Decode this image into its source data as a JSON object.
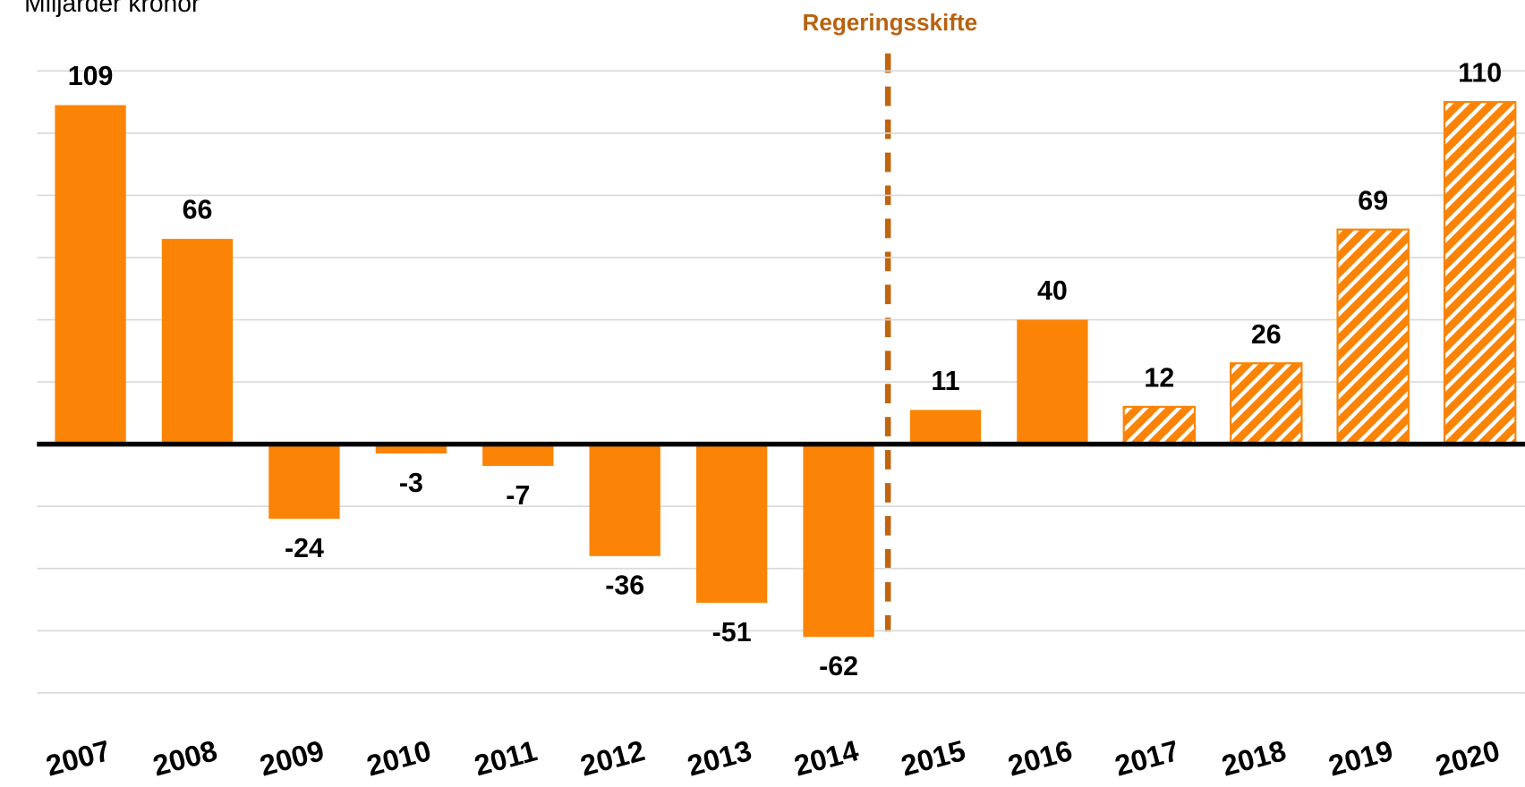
{
  "chart_data": {
    "type": "bar",
    "y_axis_label": "Miljarder kronor",
    "annotation": "Regeringsskifte",
    "categories": [
      "2007",
      "2008",
      "2009",
      "2010",
      "2011",
      "2012",
      "2013",
      "2014",
      "2015",
      "2016",
      "2017",
      "2018",
      "2019",
      "2020"
    ],
    "values": [
      109,
      66,
      -24,
      -3,
      -7,
      -36,
      -51,
      -62,
      11,
      40,
      12,
      26,
      69,
      110
    ],
    "hatched": [
      false,
      false,
      false,
      false,
      false,
      false,
      false,
      false,
      false,
      false,
      true,
      true,
      true,
      true
    ],
    "color": "#fb8407",
    "ylim": [
      -80,
      120
    ],
    "yticks": [
      -80,
      -60,
      -40,
      -20,
      0,
      20,
      40,
      60,
      80,
      100,
      120
    ],
    "grid": true
  }
}
